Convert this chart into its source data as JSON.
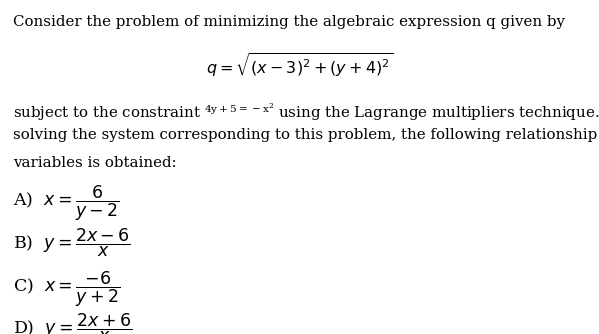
{
  "background_color": "#ffffff",
  "text_color": "#000000",
  "title_line": "Consider the problem of minimizing the algebraic expression q given by",
  "formula_q": "$q = \\sqrt{(x-3)^2 + (y+4)^2}$",
  "body_line2": "solving the system corresponding to this problem, the following relationship between the",
  "body_line3": "variables is obtained:",
  "option_A": "$x = \\dfrac{6}{y-2}$",
  "option_B": "$y = \\dfrac{2x-6}{x}$",
  "option_C": "$x = \\dfrac{-6}{y+2}$",
  "option_D": "$y = \\dfrac{2x+6}{x}$",
  "fontsize_main": 10.8,
  "fontsize_formula": 11.5,
  "fontsize_options": 12.5
}
